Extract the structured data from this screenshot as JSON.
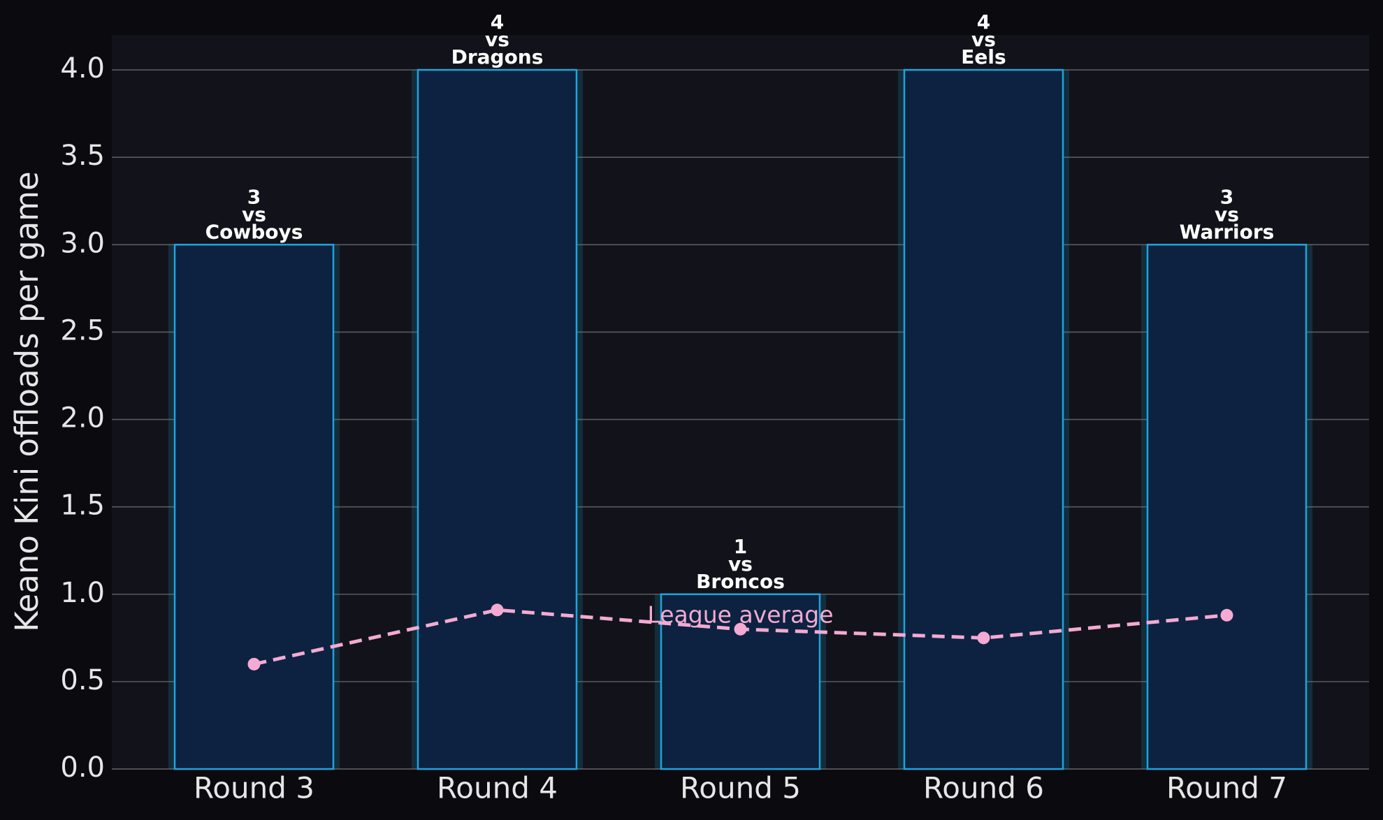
{
  "chart_data": {
    "type": "bar",
    "y_label": "Keano Kini offloads per game",
    "categories": [
      "Round 3",
      "Round 4",
      "Round 5",
      "Round 6",
      "Round 7"
    ],
    "values": [
      3,
      4,
      1,
      4,
      3
    ],
    "opponents": [
      "Cowboys",
      "Dragons",
      "Broncos",
      "Eels",
      "Warriors"
    ],
    "annotation_joiner": "vs",
    "color": "#0c2240",
    "edge_color": "#1ea4dc",
    "lines": [
      {
        "type": "line",
        "name": "League average",
        "color": "#f4aad2",
        "values": [
          0.6,
          0.91,
          0.8,
          0.75,
          0.88
        ]
      }
    ],
    "ylim": [
      0,
      4.2
    ],
    "yticks": [
      {
        "value": 0,
        "label": "0.0"
      },
      0.5,
      {
        "value": 1,
        "label": "1.0"
      },
      1.5,
      {
        "value": 2,
        "label": "2.0"
      },
      2.5,
      {
        "value": 3,
        "label": "3.0"
      },
      3.5,
      {
        "value": 4,
        "label": "4.0"
      }
    ],
    "grid": true
  }
}
